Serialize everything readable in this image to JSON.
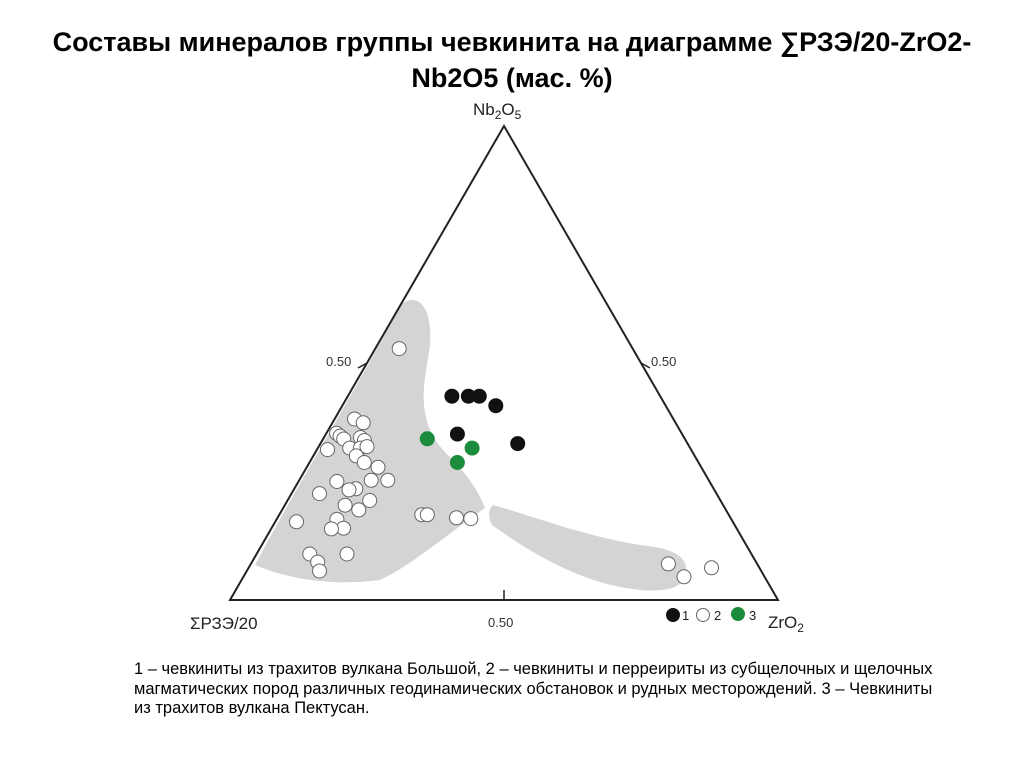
{
  "page": {
    "title": "Составы минералов группы чевкинита на диаграмме ∑РЗЭ/20-ZrO2-Nb2O5 (мас. %)",
    "caption": "1 – чевкиниты из трахитов вулкана Большой, 2 – чевкиниты и перреириты из субщелочных и щелочных магматических пород различных геодинамических обстановок и рудных месторождений. 3 – Чевкиниты из трахитов вулкана Пектусан."
  },
  "chart_data": {
    "type": "scatter",
    "subtype": "ternary",
    "vertices": {
      "left": "ΣРЗЭ/20",
      "right": "ZrO",
      "top": "Nb"
    },
    "vertex_labels": {
      "top": {
        "base": "Nb",
        "sub1": "2",
        "mid": "O",
        "sub2": "5"
      },
      "left": {
        "base": "ΣРЗЭ/20"
      },
      "right": {
        "base": "ZrO",
        "sub1": "2"
      }
    },
    "tick_labels": {
      "left_edge": "0.50",
      "right_edge": "0.50",
      "bottom_edge": "0.50"
    },
    "legend": [
      {
        "marker": "1",
        "color": "#111111",
        "filled": true
      },
      {
        "marker": "2",
        "color": "#ffffff",
        "filled": false
      },
      {
        "marker": "3",
        "color": "#1a8c3c",
        "filled": true
      }
    ],
    "fields_color": "#d4d4d4",
    "series": [
      {
        "name": "1",
        "color": "#111111",
        "points": [
          {
            "ree": 0.38,
            "zr": 0.19,
            "nb": 0.43
          },
          {
            "ree": 0.35,
            "zr": 0.22,
            "nb": 0.43
          },
          {
            "ree": 0.33,
            "zr": 0.24,
            "nb": 0.43
          },
          {
            "ree": 0.31,
            "zr": 0.28,
            "nb": 0.41
          },
          {
            "ree": 0.41,
            "zr": 0.24,
            "nb": 0.35
          },
          {
            "ree": 0.31,
            "zr": 0.36,
            "nb": 0.33
          }
        ]
      },
      {
        "name": "2",
        "color": "#ffffff",
        "points": [
          {
            "ree": 0.49,
            "zr": 0.05,
            "nb": 0.61
          },
          {
            "ree": 0.64,
            "zr": 0.04,
            "nb": 0.42
          },
          {
            "ree": 0.61,
            "zr": 0.06,
            "nb": 0.4
          },
          {
            "ree": 0.68,
            "zr": 0.02,
            "nb": 0.38
          },
          {
            "ree": 0.67,
            "zr": 0.03,
            "nb": 0.37
          },
          {
            "ree": 0.66,
            "zr": 0.04,
            "nb": 0.36
          },
          {
            "ree": 0.62,
            "zr": 0.07,
            "nb": 0.36
          },
          {
            "ree": 0.61,
            "zr": 0.08,
            "nb": 0.35
          },
          {
            "ree": 0.69,
            "zr": 0.02,
            "nb": 0.33
          },
          {
            "ree": 0.64,
            "zr": 0.06,
            "nb": 0.33
          },
          {
            "ree": 0.62,
            "zr": 0.08,
            "nb": 0.33
          },
          {
            "ree": 0.6,
            "zr": 0.09,
            "nb": 0.33
          },
          {
            "ree": 0.63,
            "zr": 0.08,
            "nb": 0.31
          },
          {
            "ree": 0.61,
            "zr": 0.1,
            "nb": 0.29
          },
          {
            "ree": 0.59,
            "zr": 0.13,
            "nb": 0.28
          },
          {
            "ree": 0.58,
            "zr": 0.16,
            "nb": 0.25
          },
          {
            "ree": 0.68,
            "zr": 0.07,
            "nb": 0.25
          },
          {
            "ree": 0.61,
            "zr": 0.13,
            "nb": 0.25
          },
          {
            "ree": 0.64,
            "zr": 0.11,
            "nb": 0.23
          },
          {
            "ree": 0.66,
            "zr": 0.1,
            "nb": 0.23
          },
          {
            "ree": 0.71,
            "zr": 0.05,
            "nb": 0.22
          },
          {
            "ree": 0.64,
            "zr": 0.15,
            "nb": 0.21
          },
          {
            "ree": 0.69,
            "zr": 0.11,
            "nb": 0.2
          },
          {
            "ree": 0.67,
            "zr": 0.14,
            "nb": 0.19
          },
          {
            "ree": 0.72,
            "zr": 0.11,
            "nb": 0.17
          },
          {
            "ree": 0.49,
            "zr": 0.32,
            "nb": 0.17
          },
          {
            "ree": 0.71,
            "zr": 0.13,
            "nb": 0.15
          },
          {
            "ree": 0.74,
            "zr": 0.11,
            "nb": 0.15
          },
          {
            "ree": 0.56,
            "zr": 0.26,
            "nb": 0.18
          },
          {
            "ree": 0.55,
            "zr": 0.27,
            "nb": 0.18
          },
          {
            "ree": 0.82,
            "zr": 0.04,
            "nb": 0.17
          },
          {
            "ree": 0.47,
            "zr": 0.35,
            "nb": 0.17
          },
          {
            "ree": 0.83,
            "zr": 0.1,
            "nb": 0.1
          },
          {
            "ree": 0.76,
            "zr": 0.17,
            "nb": 0.1
          },
          {
            "ree": 0.8,
            "zr": 0.12,
            "nb": 0.08
          },
          {
            "ree": 0.79,
            "zr": 0.13,
            "nb": 0.06
          },
          {
            "ree": 0.17,
            "zr": 0.8,
            "nb": 0.08
          },
          {
            "ree": 0.15,
            "zr": 0.82,
            "nb": 0.05
          },
          {
            "ree": 0.09,
            "zr": 0.87,
            "nb": 0.07
          }
        ]
      },
      {
        "name": "3",
        "color": "#1a8c3c",
        "points": [
          {
            "ree": 0.47,
            "zr": 0.19,
            "nb": 0.34
          },
          {
            "ree": 0.41,
            "zr": 0.29,
            "nb": 0.33
          },
          {
            "ree": 0.44,
            "zr": 0.27,
            "nb": 0.29
          }
        ]
      }
    ]
  }
}
